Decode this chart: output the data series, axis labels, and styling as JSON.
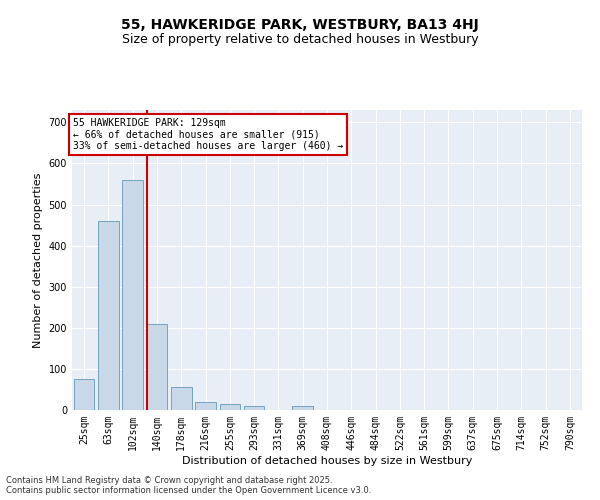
{
  "title": "55, HAWKERIDGE PARK, WESTBURY, BA13 4HJ",
  "subtitle": "Size of property relative to detached houses in Westbury",
  "xlabel": "Distribution of detached houses by size in Westbury",
  "ylabel": "Number of detached properties",
  "categories": [
    "25sqm",
    "63sqm",
    "102sqm",
    "140sqm",
    "178sqm",
    "216sqm",
    "255sqm",
    "293sqm",
    "331sqm",
    "369sqm",
    "408sqm",
    "446sqm",
    "484sqm",
    "522sqm",
    "561sqm",
    "599sqm",
    "637sqm",
    "675sqm",
    "714sqm",
    "752sqm",
    "790sqm"
  ],
  "values": [
    75,
    460,
    560,
    210,
    55,
    20,
    15,
    10,
    0,
    10,
    0,
    0,
    0,
    0,
    0,
    0,
    0,
    0,
    0,
    0,
    0
  ],
  "bar_color": "#c8d8e8",
  "bar_edge_color": "#6699bb",
  "marker_color": "#cc0000",
  "annotation_text": "55 HAWKERIDGE PARK: 129sqm\n← 66% of detached houses are smaller (915)\n33% of semi-detached houses are larger (460) →",
  "annotation_box_color": "#ffffff",
  "annotation_box_edge": "#cc0000",
  "ylim": [
    0,
    730
  ],
  "yticks": [
    0,
    100,
    200,
    300,
    400,
    500,
    600,
    700
  ],
  "background_color": "#e8eef5",
  "footer_line1": "Contains HM Land Registry data © Crown copyright and database right 2025.",
  "footer_line2": "Contains public sector information licensed under the Open Government Licence v3.0.",
  "title_fontsize": 10,
  "subtitle_fontsize": 9,
  "label_fontsize": 8,
  "tick_fontsize": 7,
  "footer_fontsize": 6,
  "annot_fontsize": 7
}
